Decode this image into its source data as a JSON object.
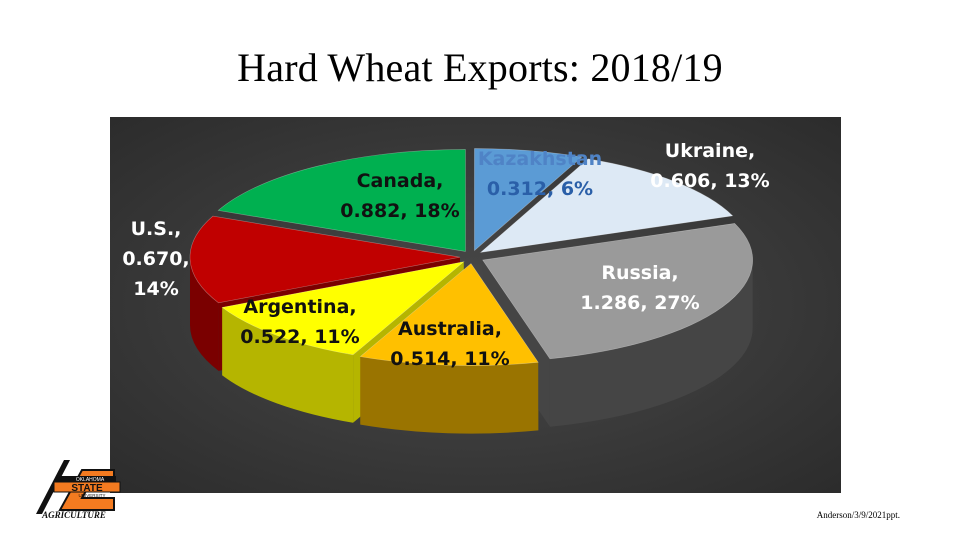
{
  "title": "Hard Wheat Exports: 2018/19",
  "footnote": "Anderson/3/9/2021ppt.",
  "logo": {
    "icon": "oklahoma-state-agriculture-logo",
    "text_lines": [
      "OKLAHOMA",
      "STATE",
      "UNIVERSITY",
      "AGRICULTURE"
    ],
    "colors": {
      "orange": "#f47b20",
      "black": "#111111"
    }
  },
  "chart_data": {
    "type": "pie",
    "style": "3d-exploded",
    "title": "",
    "legend": "none",
    "background": "#3b3b3b",
    "slices": [
      {
        "name": "Kazakhstan",
        "value": 0.312,
        "percent": "6%",
        "label_lines": [
          "Kazakhstan",
          "0.312, 6%"
        ],
        "label_color": "#4f83c6",
        "label_value_color": "#2a5fa8",
        "color": "#5b9bd5",
        "side": "#3d72a3"
      },
      {
        "name": "Ukraine",
        "value": 0.606,
        "percent": "13%",
        "label_lines": [
          "Ukraine,",
          "0.606, 13%"
        ],
        "label_color": "#ffffff",
        "label_value_color": "#ffffff",
        "color": "#dde9f5",
        "side": "#a9b8c6"
      },
      {
        "name": "Russia",
        "value": 1.286,
        "percent": "27%",
        "label_lines": [
          "Russia,",
          "1.286, 27%"
        ],
        "label_color": "#ffffff",
        "label_value_color": "#ffffff",
        "color": "#9a9a9a",
        "side": "#454545"
      },
      {
        "name": "Australia",
        "value": 0.514,
        "percent": "11%",
        "label_lines": [
          "Australia,",
          "0.514, 11%"
        ],
        "label_color": "#111111",
        "label_value_color": "#111111",
        "color": "#ffc000",
        "side": "#9a7400"
      },
      {
        "name": "Argentina",
        "value": 0.522,
        "percent": "11%",
        "label_lines": [
          "Argentina,",
          "0.522, 11%"
        ],
        "label_color": "#111111",
        "label_value_color": "#111111",
        "color": "#ffff00",
        "side": "#b5b500"
      },
      {
        "name": "U.S.",
        "value": 0.67,
        "percent": "14%",
        "label_lines": [
          "U.S.,",
          "0.670,",
          "14%"
        ],
        "label_color": "#ffffff",
        "label_value_color": "#ffffff",
        "color": "#c00000",
        "side": "#7a0000"
      },
      {
        "name": "Canada",
        "value": 0.882,
        "percent": "18%",
        "label_lines": [
          "Canada,",
          "0.882, 18%"
        ],
        "label_color": "#111111",
        "label_value_color": "#111111",
        "color": "#00b050",
        "side": "#007535"
      }
    ]
  }
}
